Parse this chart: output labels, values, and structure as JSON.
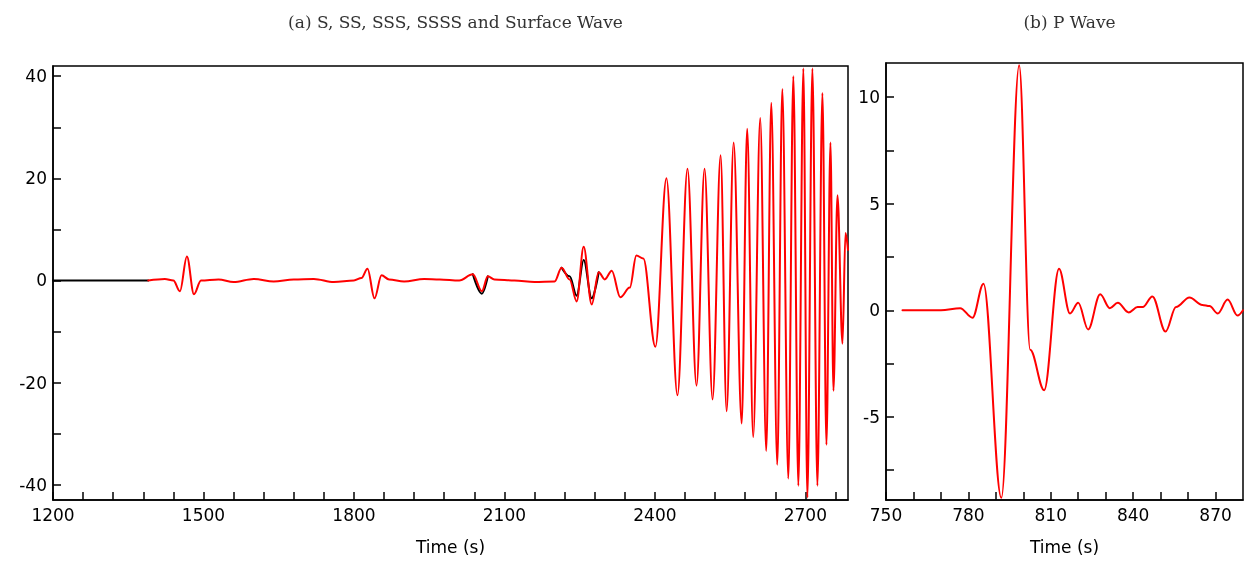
{
  "chart_data": [
    {
      "type": "line",
      "title": "(a) S, SS, SSS, SSSS and Surface Wave",
      "xlabel": "Time (s)",
      "x": [
        1200,
        1390,
        1423,
        1440,
        1453,
        1467,
        1481,
        1495,
        1530,
        1560,
        1600,
        1640,
        1680,
        1720,
        1760,
        1800,
        1815,
        1827,
        1841,
        1855,
        1870,
        1900,
        1940,
        1971,
        2010,
        2037,
        2055,
        2067,
        2080,
        2120,
        2160,
        2200,
        2214,
        2230,
        2244,
        2258,
        2274,
        2288,
        2300,
        2314,
        2331,
        2350,
        2363,
        2377,
        2401,
        2423,
        2445,
        2465,
        2483,
        2499,
        2515,
        2531,
        2543,
        2557,
        2573,
        2584,
        2596,
        2610,
        2622,
        2632,
        2644,
        2654,
        2666,
        2676,
        2686,
        2696,
        2704,
        2714,
        2724,
        2734,
        2742,
        2750,
        2756,
        2764,
        2774,
        2780,
        2785
      ],
      "series": [
        {
          "color": "#000000",
          "values": [
            0,
            0,
            null,
            null,
            null,
            null,
            null,
            null,
            null,
            null,
            null,
            null,
            null,
            null,
            null,
            null,
            null,
            null,
            null,
            null,
            null,
            null,
            null,
            null,
            null,
            1.2,
            -2.6,
            0.8,
            null,
            null,
            null,
            null,
            2.5,
            0.8,
            -3.0,
            4.0,
            -3.5,
            1.6,
            null,
            null,
            null,
            null,
            null,
            null,
            null,
            null,
            null,
            null,
            null,
            null,
            null,
            null,
            null,
            null,
            null,
            null,
            null,
            null,
            null,
            null,
            null,
            null,
            null,
            null,
            null,
            null,
            null,
            null,
            null,
            null,
            null,
            null,
            null,
            null,
            null,
            null,
            null
          ]
        },
        {
          "color": "#ff0000",
          "values": [
            null,
            0,
            0.3,
            0,
            -2.1,
            4.7,
            -2.7,
            0,
            0.2,
            -0.3,
            0.3,
            -0.2,
            0.2,
            0.3,
            -0.3,
            0,
            0.5,
            2.3,
            -3.5,
            1.0,
            0.2,
            -0.2,
            0.3,
            0.2,
            0,
            1.2,
            -2.1,
            0.8,
            0.2,
            0,
            -0.3,
            -0.2,
            2.5,
            0.2,
            -4.1,
            6.6,
            -4.7,
            1.6,
            0.2,
            1.9,
            -3.3,
            -1.4,
            4.9,
            4.3,
            -13.0,
            20.0,
            -22.5,
            21.9,
            -20.6,
            21.9,
            -23.3,
            24.5,
            -25.6,
            27.0,
            -28.0,
            29.7,
            -30.7,
            31.8,
            -33.4,
            34.8,
            -36.1,
            37.5,
            -38.8,
            40.0,
            -40.2,
            41.5,
            -42.5,
            41.5,
            -40.2,
            36.7,
            -32.2,
            27.0,
            -21.6,
            16.7,
            -12.4,
            9.3,
            6.0
          ]
        }
      ],
      "xlim": [
        1200,
        2785
      ],
      "ylim": [
        -43,
        42
      ],
      "xticks": [
        1200,
        {
          "value": 1260,
          "label": null
        },
        {
          "value": 1320,
          "label": null
        },
        {
          "value": 1380,
          "label": null
        },
        {
          "value": 1440,
          "label": null
        },
        1500,
        {
          "value": 1560,
          "label": null
        },
        {
          "value": 1620,
          "label": null
        },
        {
          "value": 1680,
          "label": null
        },
        {
          "value": 1740,
          "label": null
        },
        1800,
        {
          "value": 1860,
          "label": null
        },
        {
          "value": 1920,
          "label": null
        },
        {
          "value": 1980,
          "label": null
        },
        {
          "value": 2040,
          "label": null
        },
        2100,
        {
          "value": 2160,
          "label": null
        },
        {
          "value": 2220,
          "label": null
        },
        {
          "value": 2280,
          "label": null
        },
        {
          "value": 2340,
          "label": null
        },
        2400,
        {
          "value": 2460,
          "label": null
        },
        {
          "value": 2520,
          "label": null
        },
        {
          "value": 2580,
          "label": null
        },
        {
          "value": 2640,
          "label": null
        },
        2700,
        {
          "value": 2760,
          "label": null
        }
      ],
      "yticks": [
        -40,
        {
          "value": -30,
          "label": null
        },
        -20,
        {
          "value": -10,
          "label": null
        },
        0,
        {
          "value": 10,
          "label": null
        },
        20,
        {
          "value": 30,
          "label": null
        },
        40
      ],
      "grid": false
    },
    {
      "type": "line",
      "title": "(b) P Wave",
      "xlabel": "Time (s)",
      "x": [
        756,
        770,
        777,
        781.5,
        785.5,
        792,
        798.5,
        802.5,
        807.6,
        813,
        817,
        820,
        823.6,
        828,
        831.5,
        834.4,
        838.4,
        841.6,
        843.5,
        847,
        851.8,
        855.6,
        860.5,
        865.2,
        867.8,
        870.8,
        874.4,
        878,
        880
      ],
      "series": [
        {
          "color": "#ff0000",
          "values": [
            0,
            0,
            0.1,
            -0.35,
            1.25,
            -8.8,
            11.5,
            -1.85,
            -3.75,
            1.95,
            -0.15,
            0.35,
            -0.9,
            0.75,
            0.1,
            0.35,
            -0.1,
            0.15,
            0.15,
            0.65,
            -1.0,
            0.15,
            0.6,
            0.25,
            0.2,
            -0.15,
            0.5,
            -0.25,
            0
          ]
        }
      ],
      "xlim": [
        750,
        880
      ],
      "ylim": [
        -8.9,
        11.6
      ],
      "xticks": [
        750,
        {
          "value": 760,
          "label": null
        },
        {
          "value": 770,
          "label": null
        },
        780,
        {
          "value": 790,
          "label": null
        },
        {
          "value": 800,
          "label": null
        },
        810,
        {
          "value": 820,
          "label": null
        },
        {
          "value": 830,
          "label": null
        },
        840,
        {
          "value": 850,
          "label": null
        },
        {
          "value": 860,
          "label": null
        },
        870
      ],
      "yticks": [
        {
          "value": -7.5,
          "label": null
        },
        -5,
        {
          "value": -2.5,
          "label": null
        },
        0,
        {
          "value": 2.5,
          "label": null
        },
        5,
        {
          "value": 7.5,
          "label": null
        },
        10
      ],
      "grid": false
    }
  ]
}
